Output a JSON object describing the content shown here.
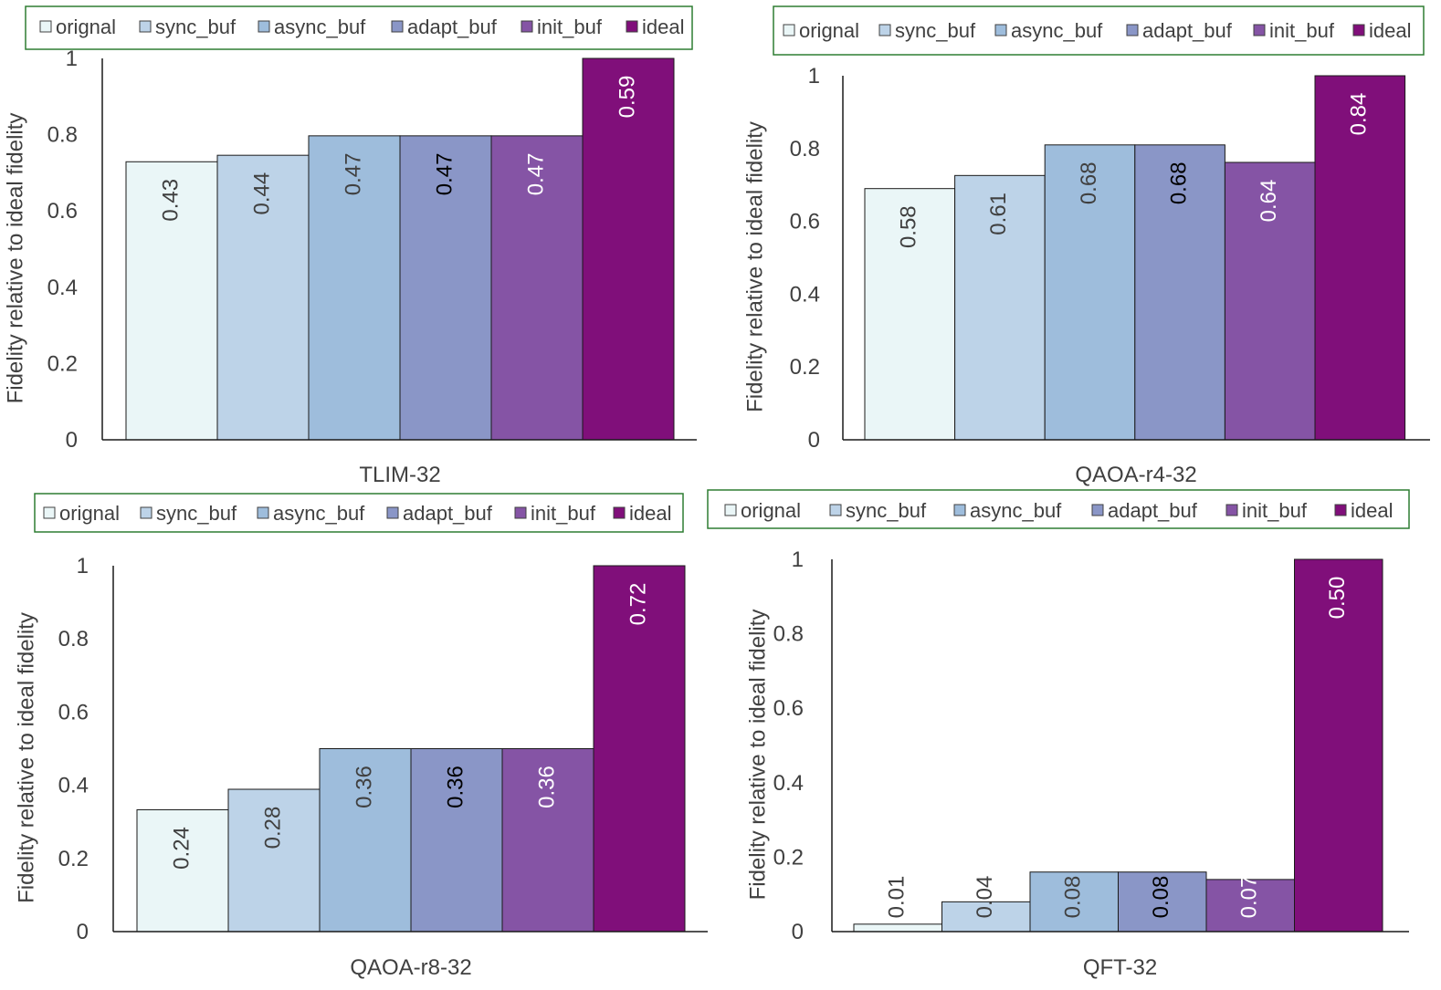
{
  "series_names": [
    "orignal",
    "sync_buf",
    "async_buf",
    "adapt_buf",
    "init_buf",
    "ideal"
  ],
  "series_colors": [
    "#eaf6f7",
    "#bdd3e8",
    "#9ebddc",
    "#8a96c7",
    "#8554a5",
    "#800f7a"
  ],
  "series_label_colors": [
    "#404040",
    "#404040",
    "#404040",
    "#000000",
    "#ffffff",
    "#ffffff"
  ],
  "chart_data": [
    {
      "type": "bar",
      "title": "",
      "xlabel": "TLIM-32",
      "ylabel": "Fidelity  relative to ideal fidelity",
      "ylim": [
        0,
        1
      ],
      "yticks": [
        "0",
        "0.2",
        "0.4",
        "0.6",
        "0.8",
        "1"
      ],
      "categories": [
        "orignal",
        "sync_buf",
        "async_buf",
        "adapt_buf",
        "init_buf",
        "ideal"
      ],
      "values": [
        0.729,
        0.746,
        0.797,
        0.797,
        0.797,
        1.0
      ],
      "data_labels": [
        "0.43",
        "0.44",
        "0.47",
        "0.47",
        "0.47",
        "0.59"
      ],
      "legend": "top"
    },
    {
      "type": "bar",
      "title": "",
      "xlabel": "QAOA-r4-32",
      "ylabel": "Fidelity  relative to ideal fidelity",
      "ylim": [
        0,
        1
      ],
      "yticks": [
        "0",
        "0.2",
        "0.4",
        "0.6",
        "0.8",
        "1"
      ],
      "categories": [
        "orignal",
        "sync_buf",
        "async_buf",
        "adapt_buf",
        "init_buf",
        "ideal"
      ],
      "values": [
        0.69,
        0.726,
        0.81,
        0.81,
        0.762,
        1.0
      ],
      "data_labels": [
        "0.58",
        "0.61",
        "0.68",
        "0.68",
        "0.64",
        "0.84"
      ],
      "legend": "top"
    },
    {
      "type": "bar",
      "title": "",
      "xlabel": "QAOA-r8-32",
      "ylabel": "Fidelity  relative to ideal fidelity",
      "ylim": [
        0,
        1
      ],
      "yticks": [
        "0",
        "0.2",
        "0.4",
        "0.6",
        "0.8",
        "1"
      ],
      "categories": [
        "orignal",
        "sync_buf",
        "async_buf",
        "adapt_buf",
        "init_buf",
        "ideal"
      ],
      "values": [
        0.333,
        0.389,
        0.5,
        0.5,
        0.5,
        1.0
      ],
      "data_labels": [
        "0.24",
        "0.28",
        "0.36",
        "0.36",
        "0.36",
        "0.72"
      ],
      "legend": "top"
    },
    {
      "type": "bar",
      "title": "",
      "xlabel": "QFT-32",
      "ylabel": "Fidelity  relative to ideal fidelity",
      "ylim": [
        0,
        1
      ],
      "yticks": [
        "0",
        "0.2",
        "0.4",
        "0.6",
        "0.8",
        "1"
      ],
      "categories": [
        "orignal",
        "sync_buf",
        "async_buf",
        "adapt_buf",
        "init_buf",
        "ideal"
      ],
      "values": [
        0.02,
        0.08,
        0.16,
        0.16,
        0.14,
        1.0
      ],
      "data_labels": [
        "0.01",
        "0.04",
        "0.08",
        "0.08",
        "0.07",
        "0.50"
      ],
      "legend": "top"
    }
  ]
}
